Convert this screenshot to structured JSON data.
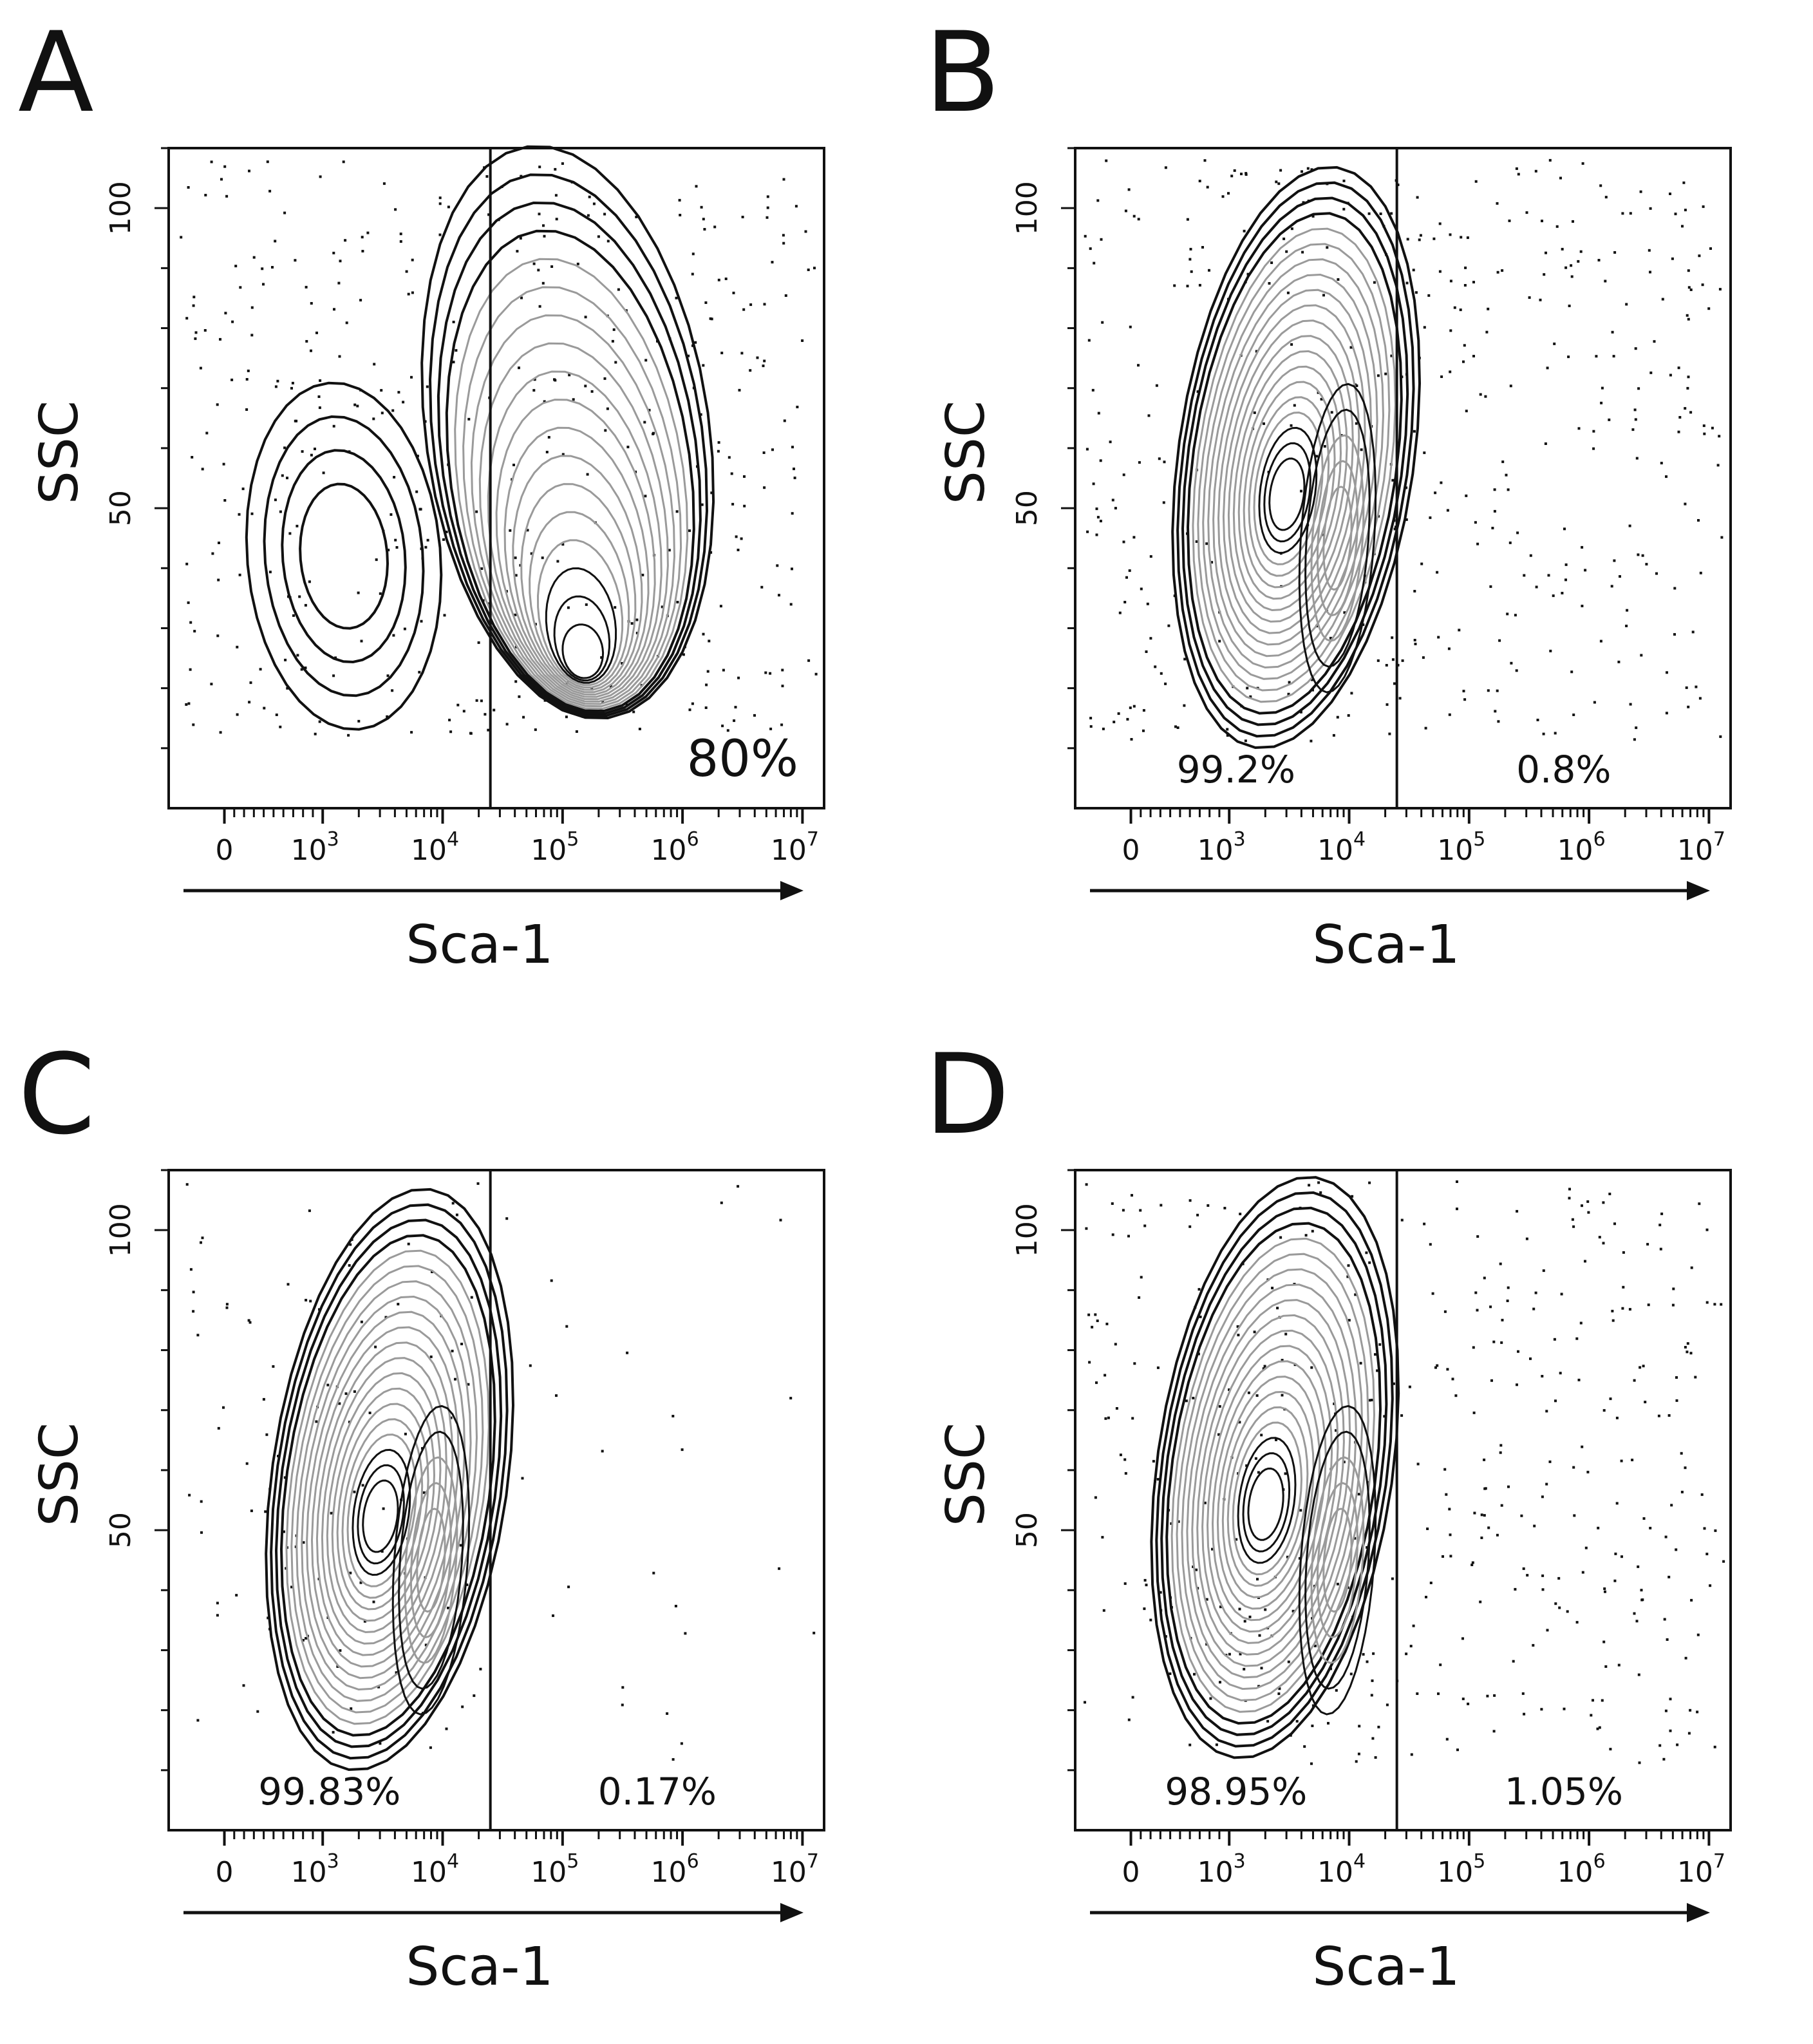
{
  "figure": {
    "panels": [
      "A",
      "B",
      "C",
      "D"
    ]
  },
  "colors": {
    "outer_contour": "#111111",
    "inner_contour": "#9a9a9a",
    "dots": "#111111",
    "axis": "#111111"
  },
  "chart_data": [
    {
      "panel": "A",
      "type": "contour",
      "xlabel": "Sca-1",
      "ylabel": "SSC",
      "x_scale": "biexponential (log above 10^3)",
      "x_ticks": [
        {
          "base": "0",
          "exp": ""
        },
        {
          "base": "10",
          "exp": "3"
        },
        {
          "base": "10",
          "exp": "4"
        },
        {
          "base": "10",
          "exp": "5"
        },
        {
          "base": "10",
          "exp": "6"
        },
        {
          "base": "10",
          "exp": "7"
        }
      ],
      "y_ticks": [
        "50",
        "100"
      ],
      "ylim": [
        0,
        110
      ],
      "gate_x": 25000,
      "gate_labels": [
        {
          "text": "80%",
          "region": "right"
        }
      ],
      "population_peak": {
        "x": 150000,
        "y": 24
      },
      "contour_levels": 18,
      "scatter_density": "high"
    },
    {
      "panel": "B",
      "type": "contour",
      "xlabel": "Sca-1",
      "ylabel": "SSC",
      "x_scale": "biexponential (log above 10^3)",
      "x_ticks": [
        {
          "base": "0",
          "exp": ""
        },
        {
          "base": "10",
          "exp": "3"
        },
        {
          "base": "10",
          "exp": "4"
        },
        {
          "base": "10",
          "exp": "5"
        },
        {
          "base": "10",
          "exp": "6"
        },
        {
          "base": "10",
          "exp": "7"
        }
      ],
      "y_ticks": [
        "50",
        "100"
      ],
      "ylim": [
        0,
        110
      ],
      "gate_x": 25000,
      "gate_labels": [
        {
          "text": "99.2%",
          "region": "left"
        },
        {
          "text": "0.8%",
          "region": "right"
        }
      ],
      "population_peak": {
        "x": 3000,
        "y": 52
      },
      "contour_levels": 20,
      "scatter_density": "high"
    },
    {
      "panel": "C",
      "type": "contour",
      "xlabel": "Sca-1",
      "ylabel": "SSC",
      "x_scale": "biexponential (log above 10^3)",
      "x_ticks": [
        {
          "base": "0",
          "exp": ""
        },
        {
          "base": "10",
          "exp": "3"
        },
        {
          "base": "10",
          "exp": "4"
        },
        {
          "base": "10",
          "exp": "5"
        },
        {
          "base": "10",
          "exp": "6"
        },
        {
          "base": "10",
          "exp": "7"
        }
      ],
      "y_ticks": [
        "50",
        "100"
      ],
      "ylim": [
        0,
        110
      ],
      "gate_x": 25000,
      "gate_labels": [
        {
          "text": "99.83%",
          "region": "left"
        },
        {
          "text": "0.17%",
          "region": "right"
        }
      ],
      "population_peak": {
        "x": 3000,
        "y": 52
      },
      "contour_levels": 20,
      "scatter_density": "low"
    },
    {
      "panel": "D",
      "type": "contour",
      "xlabel": "Sca-1",
      "ylabel": "SSC",
      "x_scale": "biexponential (log above 10^3)",
      "x_ticks": [
        {
          "base": "0",
          "exp": ""
        },
        {
          "base": "10",
          "exp": "3"
        },
        {
          "base": "10",
          "exp": "4"
        },
        {
          "base": "10",
          "exp": "5"
        },
        {
          "base": "10",
          "exp": "6"
        },
        {
          "base": "10",
          "exp": "7"
        }
      ],
      "y_ticks": [
        "50",
        "100"
      ],
      "ylim": [
        0,
        110
      ],
      "gate_x": 25000,
      "gate_labels": [
        {
          "text": "98.95%",
          "region": "left"
        },
        {
          "text": "1.05%",
          "region": "right"
        }
      ],
      "population_peak": {
        "x": 2000,
        "y": 54
      },
      "contour_levels": 20,
      "scatter_density": "high"
    }
  ]
}
